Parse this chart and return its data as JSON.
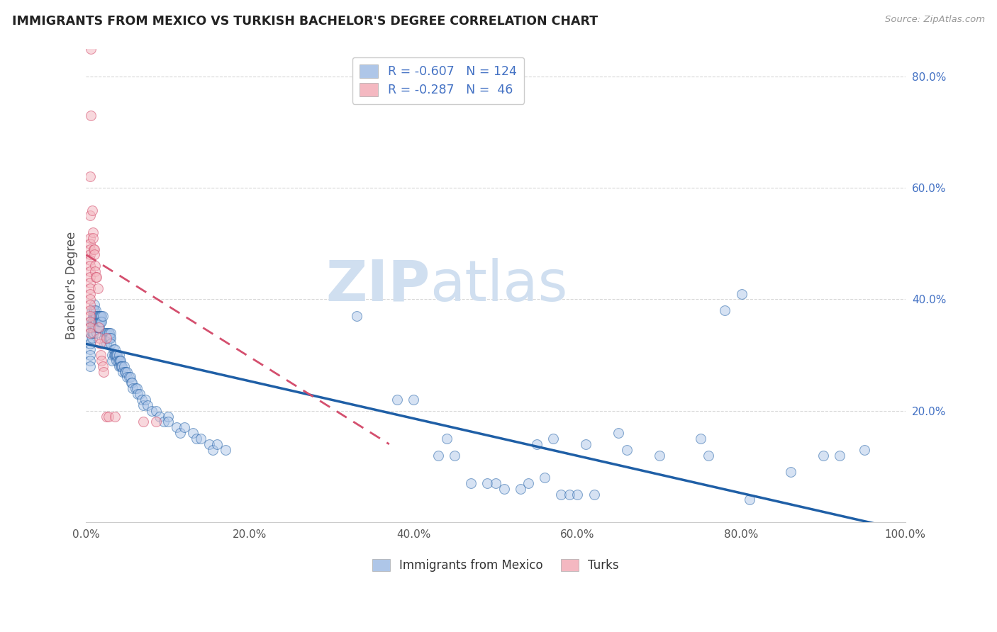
{
  "title": "IMMIGRANTS FROM MEXICO VS TURKISH BACHELOR'S DEGREE CORRELATION CHART",
  "source": "Source: ZipAtlas.com",
  "ylabel": "Bachelor's Degree",
  "xlim": [
    0.0,
    100.0
  ],
  "ylim": [
    0.0,
    85.0
  ],
  "xticks": [
    0.0,
    20.0,
    40.0,
    60.0,
    80.0,
    100.0
  ],
  "yticks": [
    0.0,
    20.0,
    40.0,
    60.0,
    80.0
  ],
  "ytick_labels": [
    "",
    "20.0%",
    "40.0%",
    "60.0%",
    "80.0%"
  ],
  "xtick_labels": [
    "0.0%",
    "20.0%",
    "40.0%",
    "60.0%",
    "80.0%",
    "100.0%"
  ],
  "blue_scatter": [
    [
      0.5,
      31
    ],
    [
      0.5,
      36
    ],
    [
      0.5,
      34
    ],
    [
      0.5,
      33
    ],
    [
      0.5,
      32
    ],
    [
      0.5,
      30
    ],
    [
      0.5,
      29
    ],
    [
      0.5,
      28
    ],
    [
      0.7,
      38
    ],
    [
      0.7,
      36
    ],
    [
      0.7,
      35
    ],
    [
      0.7,
      34
    ],
    [
      0.7,
      33
    ],
    [
      0.8,
      37
    ],
    [
      0.8,
      36
    ],
    [
      0.8,
      35
    ],
    [
      0.8,
      34
    ],
    [
      0.9,
      38
    ],
    [
      0.9,
      37
    ],
    [
      0.9,
      34
    ],
    [
      1.0,
      39
    ],
    [
      1.0,
      38
    ],
    [
      1.0,
      37
    ],
    [
      1.0,
      36
    ],
    [
      1.0,
      35
    ],
    [
      1.1,
      37
    ],
    [
      1.1,
      36
    ],
    [
      1.1,
      35
    ],
    [
      1.2,
      38
    ],
    [
      1.2,
      37
    ],
    [
      1.2,
      36
    ],
    [
      1.3,
      37
    ],
    [
      1.3,
      36
    ],
    [
      1.3,
      35
    ],
    [
      1.3,
      34
    ],
    [
      1.4,
      36
    ],
    [
      1.4,
      35
    ],
    [
      1.5,
      37
    ],
    [
      1.5,
      36
    ],
    [
      1.5,
      35
    ],
    [
      1.6,
      37
    ],
    [
      1.6,
      36
    ],
    [
      1.6,
      35
    ],
    [
      1.7,
      37
    ],
    [
      1.7,
      36
    ],
    [
      1.8,
      37
    ],
    [
      1.8,
      36
    ],
    [
      1.9,
      37
    ],
    [
      1.9,
      36
    ],
    [
      2.0,
      37
    ],
    [
      2.2,
      33
    ],
    [
      2.2,
      32
    ],
    [
      2.3,
      34
    ],
    [
      2.4,
      34
    ],
    [
      2.5,
      33
    ],
    [
      2.5,
      32
    ],
    [
      2.6,
      34
    ],
    [
      2.6,
      33
    ],
    [
      2.7,
      34
    ],
    [
      2.7,
      33
    ],
    [
      2.8,
      34
    ],
    [
      2.8,
      33
    ],
    [
      2.9,
      33
    ],
    [
      3.0,
      34
    ],
    [
      3.0,
      33
    ],
    [
      3.0,
      32
    ],
    [
      3.2,
      30
    ],
    [
      3.2,
      29
    ],
    [
      3.3,
      31
    ],
    [
      3.4,
      30
    ],
    [
      3.5,
      31
    ],
    [
      3.5,
      30
    ],
    [
      3.6,
      30
    ],
    [
      3.7,
      30
    ],
    [
      3.7,
      29
    ],
    [
      3.8,
      30
    ],
    [
      3.9,
      29
    ],
    [
      4.0,
      30
    ],
    [
      4.0,
      29
    ],
    [
      4.0,
      28
    ],
    [
      4.1,
      29
    ],
    [
      4.2,
      29
    ],
    [
      4.2,
      28
    ],
    [
      4.3,
      28
    ],
    [
      4.4,
      28
    ],
    [
      4.5,
      27
    ],
    [
      4.6,
      28
    ],
    [
      4.7,
      27
    ],
    [
      4.8,
      27
    ],
    [
      5.0,
      27
    ],
    [
      5.0,
      26
    ],
    [
      5.2,
      26
    ],
    [
      5.4,
      26
    ],
    [
      5.5,
      25
    ],
    [
      5.6,
      25
    ],
    [
      5.7,
      24
    ],
    [
      6.0,
      24
    ],
    [
      6.2,
      24
    ],
    [
      6.3,
      23
    ],
    [
      6.5,
      23
    ],
    [
      6.8,
      22
    ],
    [
      7.0,
      21
    ],
    [
      7.2,
      22
    ],
    [
      7.5,
      21
    ],
    [
      8.0,
      20
    ],
    [
      8.5,
      20
    ],
    [
      9.0,
      19
    ],
    [
      9.5,
      18
    ],
    [
      10.0,
      19
    ],
    [
      10.0,
      18
    ],
    [
      11.0,
      17
    ],
    [
      11.5,
      16
    ],
    [
      12.0,
      17
    ],
    [
      13.0,
      16
    ],
    [
      13.5,
      15
    ],
    [
      14.0,
      15
    ],
    [
      15.0,
      14
    ],
    [
      15.5,
      13
    ],
    [
      16.0,
      14
    ],
    [
      17.0,
      13
    ],
    [
      33.0,
      37
    ],
    [
      38.0,
      22
    ],
    [
      40.0,
      22
    ],
    [
      43.0,
      12
    ],
    [
      44.0,
      15
    ],
    [
      45.0,
      12
    ],
    [
      47.0,
      7
    ],
    [
      49.0,
      7
    ],
    [
      50.0,
      7
    ],
    [
      51.0,
      6
    ],
    [
      53.0,
      6
    ],
    [
      54.0,
      7
    ],
    [
      55.0,
      14
    ],
    [
      56.0,
      8
    ],
    [
      57.0,
      15
    ],
    [
      58.0,
      5
    ],
    [
      59.0,
      5
    ],
    [
      60.0,
      5
    ],
    [
      61.0,
      14
    ],
    [
      62.0,
      5
    ],
    [
      65.0,
      16
    ],
    [
      66.0,
      13
    ],
    [
      70.0,
      12
    ],
    [
      75.0,
      15
    ],
    [
      76.0,
      12
    ],
    [
      78.0,
      38
    ],
    [
      80.0,
      41
    ],
    [
      81.0,
      4
    ],
    [
      86.0,
      9
    ],
    [
      90.0,
      12
    ],
    [
      92.0,
      12
    ],
    [
      95.0,
      13
    ]
  ],
  "pink_scatter": [
    [
      0.5,
      62
    ],
    [
      0.5,
      55
    ],
    [
      0.5,
      51
    ],
    [
      0.5,
      50
    ],
    [
      0.5,
      49
    ],
    [
      0.5,
      48
    ],
    [
      0.5,
      47
    ],
    [
      0.5,
      46
    ],
    [
      0.5,
      45
    ],
    [
      0.5,
      44
    ],
    [
      0.5,
      43
    ],
    [
      0.5,
      42
    ],
    [
      0.5,
      41
    ],
    [
      0.5,
      40
    ],
    [
      0.5,
      39
    ],
    [
      0.5,
      38
    ],
    [
      0.5,
      37
    ],
    [
      0.5,
      36
    ],
    [
      0.5,
      35
    ],
    [
      0.5,
      34
    ],
    [
      0.6,
      85
    ],
    [
      0.6,
      73
    ],
    [
      0.7,
      56
    ],
    [
      0.8,
      52
    ],
    [
      0.8,
      51
    ],
    [
      0.9,
      49
    ],
    [
      1.0,
      49
    ],
    [
      1.0,
      48
    ],
    [
      1.1,
      46
    ],
    [
      1.1,
      45
    ],
    [
      1.2,
      44
    ],
    [
      1.3,
      44
    ],
    [
      1.4,
      42
    ],
    [
      1.5,
      35
    ],
    [
      1.6,
      33
    ],
    [
      1.7,
      32
    ],
    [
      1.8,
      30
    ],
    [
      1.9,
      29
    ],
    [
      2.0,
      28
    ],
    [
      2.1,
      27
    ],
    [
      2.5,
      33
    ],
    [
      2.5,
      19
    ],
    [
      2.7,
      19
    ],
    [
      3.5,
      19
    ],
    [
      7.0,
      18
    ],
    [
      8.5,
      18
    ]
  ],
  "blue_line": [
    0.0,
    32.0,
    100.0,
    -1.5
  ],
  "pink_line": [
    0.0,
    48.0,
    37.0,
    14.0
  ],
  "blue_line_color": "#1f5fa6",
  "pink_line_color": "#d44f6e",
  "scatter_blue_face": "#aec6e8",
  "scatter_pink_face": "#f4b8c1",
  "watermark_zip": "ZIP",
  "watermark_atlas": "atlas",
  "watermark_color": "#d0dff0",
  "background_color": "#ffffff",
  "grid_color": "#d8d8d8"
}
